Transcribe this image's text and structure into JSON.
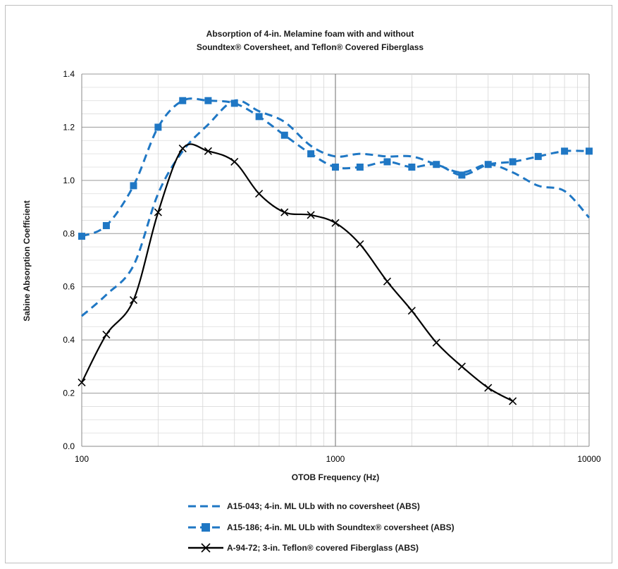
{
  "chart_data": {
    "type": "line",
    "title_lines": [
      "Absorption of 4-in. Melamine foam with and without",
      "Soundtex® Coversheet, and Teflon® Covered Fiberglass"
    ],
    "xlabel": "OTOB Frequency (Hz)",
    "ylabel": "Sabine Absorption Coefficient",
    "x_scale": "log",
    "xlim": [
      100,
      10000
    ],
    "ylim": [
      0,
      1.4
    ],
    "x_ticks": [
      "100",
      "1000",
      "10000"
    ],
    "y_ticks": [
      "0.0",
      "0.2",
      "0.4",
      "0.6",
      "0.8",
      "1.0",
      "1.2",
      "1.4"
    ],
    "grid": true,
    "legend_position": "bottom",
    "series": [
      {
        "name": "A15-043; 4-in. ML ULb with no coversheet (ABS)",
        "color": "#1f77c4",
        "style": "dashed",
        "marker": "none",
        "x": [
          100,
          125,
          160,
          200,
          250,
          315,
          400,
          500,
          630,
          800,
          1000,
          1250,
          1600,
          2000,
          2500,
          3150,
          4000,
          5000,
          6300,
          8000,
          10000
        ],
        "y": [
          0.49,
          0.57,
          0.68,
          0.95,
          1.11,
          1.21,
          1.3,
          1.26,
          1.22,
          1.13,
          1.09,
          1.1,
          1.09,
          1.09,
          1.06,
          1.03,
          1.06,
          1.03,
          0.98,
          0.96,
          0.86
        ]
      },
      {
        "name": "A15-186; 4-in. ML ULb  with Soundtex® coversheet (ABS)",
        "color": "#1f77c4",
        "style": "dashed",
        "marker": "square",
        "x": [
          100,
          125,
          160,
          200,
          250,
          315,
          400,
          500,
          630,
          800,
          1000,
          1250,
          1600,
          2000,
          2500,
          3150,
          4000,
          5000,
          6300,
          8000,
          10000
        ],
        "y": [
          0.79,
          0.83,
          0.98,
          1.2,
          1.3,
          1.3,
          1.29,
          1.24,
          1.17,
          1.1,
          1.05,
          1.05,
          1.07,
          1.05,
          1.06,
          1.02,
          1.06,
          1.07,
          1.09,
          1.11,
          1.11
        ]
      },
      {
        "name": "A-94-72; 3-in. Teflon® covered Fiberglass (ABS)",
        "color": "#000000",
        "style": "solid",
        "marker": "x",
        "x": [
          100,
          125,
          160,
          200,
          250,
          315,
          400,
          500,
          630,
          800,
          1000,
          1250,
          1600,
          2000,
          2500,
          3150,
          4000,
          5000
        ],
        "y": [
          0.24,
          0.42,
          0.55,
          0.88,
          1.12,
          1.11,
          1.07,
          0.95,
          0.88,
          0.87,
          0.84,
          0.76,
          0.62,
          0.51,
          0.39,
          0.3,
          0.22,
          0.17
        ]
      }
    ]
  }
}
